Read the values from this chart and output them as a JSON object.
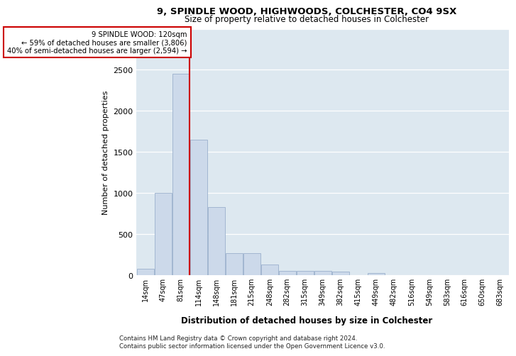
{
  "title1": "9, SPINDLE WOOD, HIGHWOODS, COLCHESTER, CO4 9SX",
  "title2": "Size of property relative to detached houses in Colchester",
  "xlabel": "Distribution of detached houses by size in Colchester",
  "ylabel": "Number of detached properties",
  "footer1": "Contains HM Land Registry data © Crown copyright and database right 2024.",
  "footer2": "Contains public sector information licensed under the Open Government Licence v3.0.",
  "annotation_line1": "9 SPINDLE WOOD: 120sqm",
  "annotation_line2": "← 59% of detached houses are smaller (3,806)",
  "annotation_line3": "40% of semi-detached houses are larger (2,594) →",
  "bar_categories": [
    "14sqm",
    "47sqm",
    "81sqm",
    "114sqm",
    "148sqm",
    "181sqm",
    "215sqm",
    "248sqm",
    "282sqm",
    "315sqm",
    "349sqm",
    "382sqm",
    "415sqm",
    "449sqm",
    "482sqm",
    "516sqm",
    "549sqm",
    "583sqm",
    "616sqm",
    "650sqm",
    "683sqm"
  ],
  "bar_values": [
    75,
    1000,
    2450,
    1650,
    830,
    270,
    270,
    130,
    55,
    55,
    55,
    45,
    0,
    30,
    0,
    0,
    0,
    0,
    0,
    0,
    0
  ],
  "bar_color": "#ccd9ea",
  "bar_edge_color": "#9ab0cc",
  "vline_color": "#cc0000",
  "vline_x": 2.5,
  "annotation_box_facecolor": "#ffffff",
  "annotation_box_edgecolor": "#cc0000",
  "ylim": [
    0,
    3000
  ],
  "yticks": [
    0,
    500,
    1000,
    1500,
    2000,
    2500,
    3000
  ],
  "plot_bg": "#dde8f0",
  "fig_bg": "#ffffff"
}
